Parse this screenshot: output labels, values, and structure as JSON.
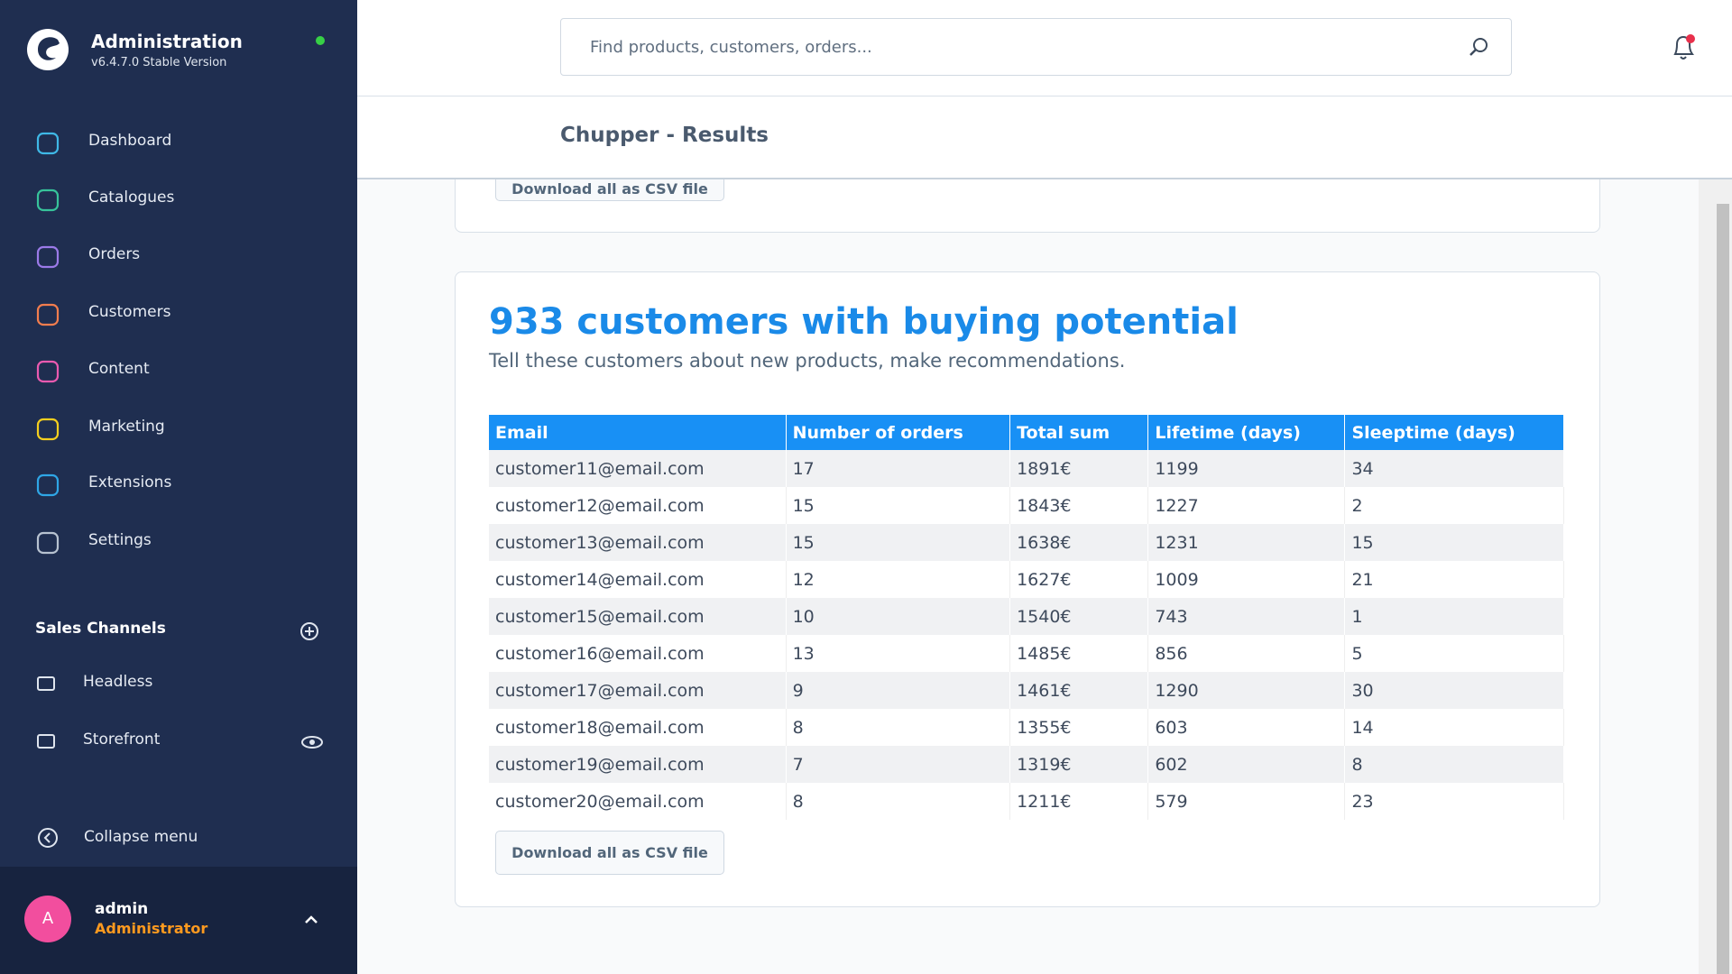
{
  "sidebar": {
    "app_name": "Administration",
    "version": "v6.4.7.0 Stable Version",
    "menu": [
      "Dashboard",
      "Catalogues",
      "Orders",
      "Customers",
      "Content",
      "Marketing",
      "Extensions",
      "Settings"
    ],
    "sales_channels_title": "Sales Channels",
    "sales_channels": [
      "Headless",
      "Storefront"
    ],
    "collapse": "Collapse menu",
    "user": {
      "initial": "A",
      "name": "admin",
      "role": "Administrator"
    }
  },
  "header": {
    "search_placeholder": "Find products, customers, orders...",
    "page_title": "Chupper - Results"
  },
  "previous_card": {
    "button": "Download all as CSV file"
  },
  "card": {
    "title": "933 customers with buying potential",
    "subtitle": "Tell these customers about new products, make recommendations.",
    "table": {
      "columns": [
        "Email",
        "Number of orders",
        "Total sum",
        "Lifetime (days)",
        "Sleeptime (days)"
      ],
      "rows": [
        [
          "customer11@email.com",
          "17",
          "1891€",
          "1199",
          "34"
        ],
        [
          "customer12@email.com",
          "15",
          "1843€",
          "1227",
          "2"
        ],
        [
          "customer13@email.com",
          "15",
          "1638€",
          "1231",
          "15"
        ],
        [
          "customer14@email.com",
          "12",
          "1627€",
          "1009",
          "21"
        ],
        [
          "customer15@email.com",
          "10",
          "1540€",
          "743",
          "1"
        ],
        [
          "customer16@email.com",
          "13",
          "1485€",
          "856",
          "5"
        ],
        [
          "customer17@email.com",
          "9",
          "1461€",
          "1290",
          "30"
        ],
        [
          "customer18@email.com",
          "8",
          "1355€",
          "603",
          "14"
        ],
        [
          "customer19@email.com",
          "7",
          "1319€",
          "602",
          "8"
        ],
        [
          "customer20@email.com",
          "8",
          "1211€",
          "579",
          "23"
        ]
      ]
    },
    "button": "Download all as CSV file"
  }
}
